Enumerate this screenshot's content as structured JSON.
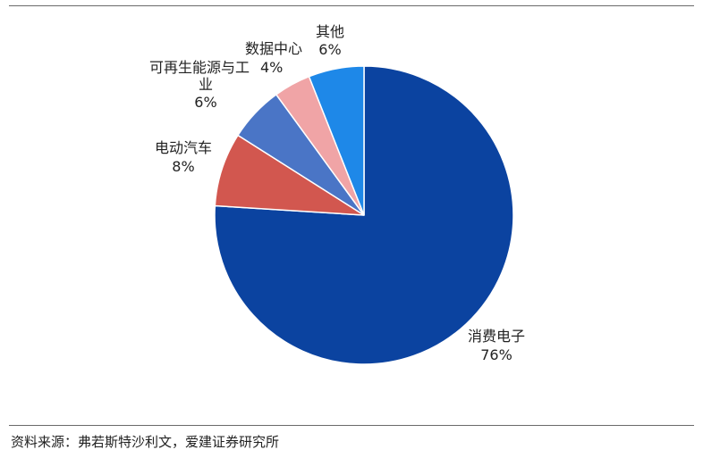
{
  "chart_data": {
    "type": "pie",
    "start": "12 o'clock",
    "direction": "clockwise",
    "slices": [
      {
        "name": "消费电子",
        "value": 76,
        "value_label": "76%",
        "color": "#0b43a0"
      },
      {
        "name": "电动汽车",
        "value": 8,
        "value_label": "8%",
        "color": "#d2574f"
      },
      {
        "name": "可再生能源与工业",
        "name_lines": [
          "可再生能源与工",
          "业"
        ],
        "value": 6,
        "value_label": "6%",
        "color": "#4a75c6"
      },
      {
        "name": "数据中心",
        "value": 4,
        "value_label": "4%",
        "color": "#f0a4a6"
      },
      {
        "name": "其他",
        "value": 6,
        "value_label": "6%",
        "color": "#1e88e8"
      }
    ]
  },
  "footer": {
    "source": "资料来源：弗若斯特沙利文，爱建证券研究所"
  }
}
